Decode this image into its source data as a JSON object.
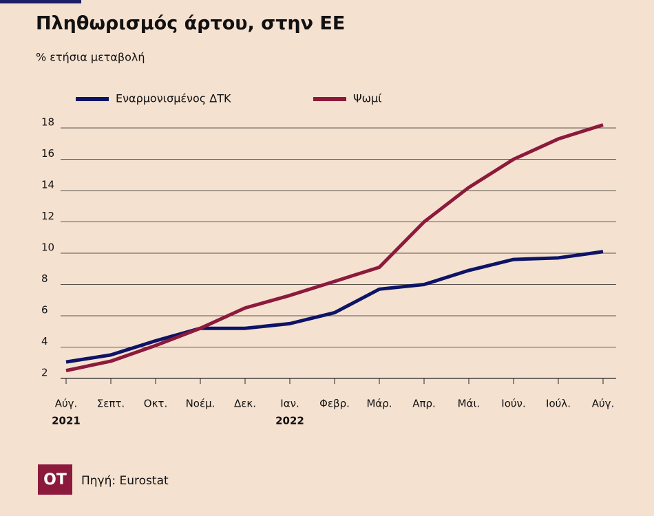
{
  "chart_data": {
    "type": "line",
    "title": "Πληθωρισμός άρτου, στην ΕΕ",
    "subtitle": "% ετήσια μεταβολή",
    "categories": [
      "Αύγ.",
      "Σεπτ.",
      "Οκτ.",
      "Νοέμ.",
      "Δεκ.",
      "Ιαν.",
      "Φεβρ.",
      "Μάρ.",
      "Απρ.",
      "Μάι.",
      "Ιούν.",
      "Ιούλ.",
      "Αύγ."
    ],
    "x_year_labels": [
      "2021",
      null,
      null,
      null,
      null,
      "2022",
      null,
      null,
      null,
      null,
      null,
      null,
      null
    ],
    "series": [
      {
        "name": "Εναρμονισμένος ΔΤΚ",
        "color": "#0d1466",
        "values": [
          3.05,
          3.5,
          4.4,
          5.2,
          5.2,
          5.5,
          6.2,
          7.7,
          8.0,
          8.9,
          9.6,
          9.7,
          10.1
        ]
      },
      {
        "name": "Ψωμί",
        "color": "#8c1a3c",
        "values": [
          2.5,
          3.1,
          4.1,
          5.2,
          6.5,
          7.3,
          8.2,
          9.1,
          12.0,
          14.2,
          16.0,
          17.3,
          18.2
        ]
      }
    ],
    "ylim": [
      2,
      18
    ],
    "yticks": [
      2,
      4,
      6,
      8,
      10,
      12,
      14,
      16,
      18
    ],
    "grid": true,
    "logo": "ΟΤ",
    "source": "Πηγή: Eurostat"
  }
}
